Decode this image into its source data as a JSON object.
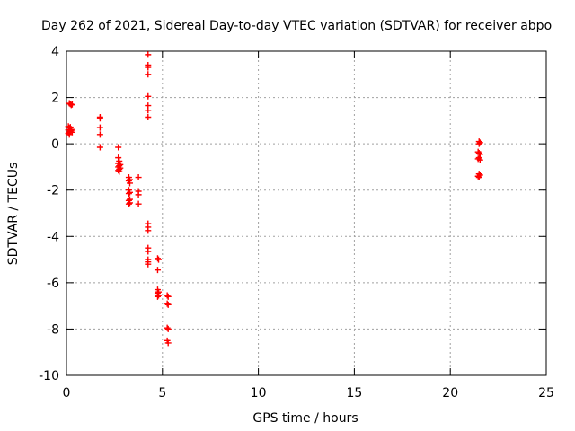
{
  "chart_data": {
    "type": "scatter",
    "title": "Day 262 of 2021, Sidereal Day-to-day VTEC variation (SDTVAR) for receiver abpo",
    "xlabel": "GPS time / hours",
    "ylabel": "SDTVAR / TECUs",
    "xlim": [
      0,
      25
    ],
    "ylim": [
      -10,
      4
    ],
    "xticks": [
      0,
      5,
      10,
      15,
      20,
      25
    ],
    "yticks": [
      -10,
      -8,
      -6,
      -4,
      -2,
      0,
      2,
      4
    ],
    "grid": true,
    "marker": "+",
    "series": [
      {
        "name": "SDTVAR",
        "color": "#ff0000",
        "points": [
          [
            0.1,
            0.45
          ],
          [
            0.15,
            0.5
          ],
          [
            0.2,
            0.55
          ],
          [
            0.1,
            0.6
          ],
          [
            0.25,
            0.62
          ],
          [
            0.15,
            0.68
          ],
          [
            0.2,
            0.72
          ],
          [
            0.1,
            0.75
          ],
          [
            0.25,
            0.58
          ],
          [
            0.3,
            0.5
          ],
          [
            0.15,
            0.4
          ],
          [
            0.15,
            1.75
          ],
          [
            0.2,
            1.72
          ],
          [
            0.25,
            1.68
          ],
          [
            0.3,
            1.7
          ],
          [
            1.75,
            1.15
          ],
          [
            1.75,
            1.1
          ],
          [
            1.75,
            0.7
          ],
          [
            1.75,
            0.4
          ],
          [
            1.75,
            -0.15
          ],
          [
            2.7,
            -0.15
          ],
          [
            2.7,
            -0.6
          ],
          [
            2.75,
            -0.75
          ],
          [
            2.7,
            -0.85
          ],
          [
            2.75,
            -0.95
          ],
          [
            2.7,
            -1.0
          ],
          [
            2.75,
            -1.1
          ],
          [
            2.7,
            -1.15
          ],
          [
            2.75,
            -1.2
          ],
          [
            2.8,
            -0.9
          ],
          [
            2.8,
            -1.05
          ],
          [
            3.25,
            -1.45
          ],
          [
            3.3,
            -1.55
          ],
          [
            3.25,
            -1.6
          ],
          [
            3.3,
            -1.7
          ],
          [
            3.25,
            -2.0
          ],
          [
            3.3,
            -2.1
          ],
          [
            3.25,
            -2.15
          ],
          [
            3.3,
            -2.4
          ],
          [
            3.25,
            -2.45
          ],
          [
            3.3,
            -2.55
          ],
          [
            3.25,
            -2.6
          ],
          [
            3.75,
            -1.45
          ],
          [
            3.75,
            -2.05
          ],
          [
            3.75,
            -2.2
          ],
          [
            3.75,
            -2.6
          ],
          [
            4.25,
            3.85
          ],
          [
            4.25,
            3.4
          ],
          [
            4.25,
            3.3
          ],
          [
            4.25,
            3.0
          ],
          [
            4.25,
            2.05
          ],
          [
            4.25,
            1.65
          ],
          [
            4.25,
            1.45
          ],
          [
            4.25,
            1.15
          ],
          [
            4.25,
            -3.45
          ],
          [
            4.25,
            -3.6
          ],
          [
            4.25,
            -3.75
          ],
          [
            4.25,
            -4.5
          ],
          [
            4.25,
            -4.65
          ],
          [
            4.25,
            -5.0
          ],
          [
            4.25,
            -5.1
          ],
          [
            4.25,
            -5.2
          ],
          [
            4.75,
            -4.95
          ],
          [
            4.8,
            -5.0
          ],
          [
            4.75,
            -5.45
          ],
          [
            4.75,
            -6.3
          ],
          [
            4.8,
            -6.4
          ],
          [
            4.75,
            -6.45
          ],
          [
            4.8,
            -6.55
          ],
          [
            4.75,
            -6.6
          ],
          [
            5.25,
            -6.55
          ],
          [
            5.3,
            -6.6
          ],
          [
            5.25,
            -6.9
          ],
          [
            5.3,
            -6.95
          ],
          [
            5.25,
            -7.95
          ],
          [
            5.3,
            -8.0
          ],
          [
            5.25,
            -8.5
          ],
          [
            5.3,
            -8.6
          ],
          [
            21.5,
            0.1
          ],
          [
            21.55,
            0.05
          ],
          [
            21.5,
            0.0
          ],
          [
            21.45,
            -0.35
          ],
          [
            21.5,
            -0.4
          ],
          [
            21.55,
            -0.45
          ],
          [
            21.5,
            -0.6
          ],
          [
            21.45,
            -0.65
          ],
          [
            21.55,
            -0.7
          ],
          [
            21.5,
            -1.3
          ],
          [
            21.55,
            -1.35
          ],
          [
            21.45,
            -1.4
          ],
          [
            21.5,
            -1.45
          ]
        ]
      }
    ]
  }
}
